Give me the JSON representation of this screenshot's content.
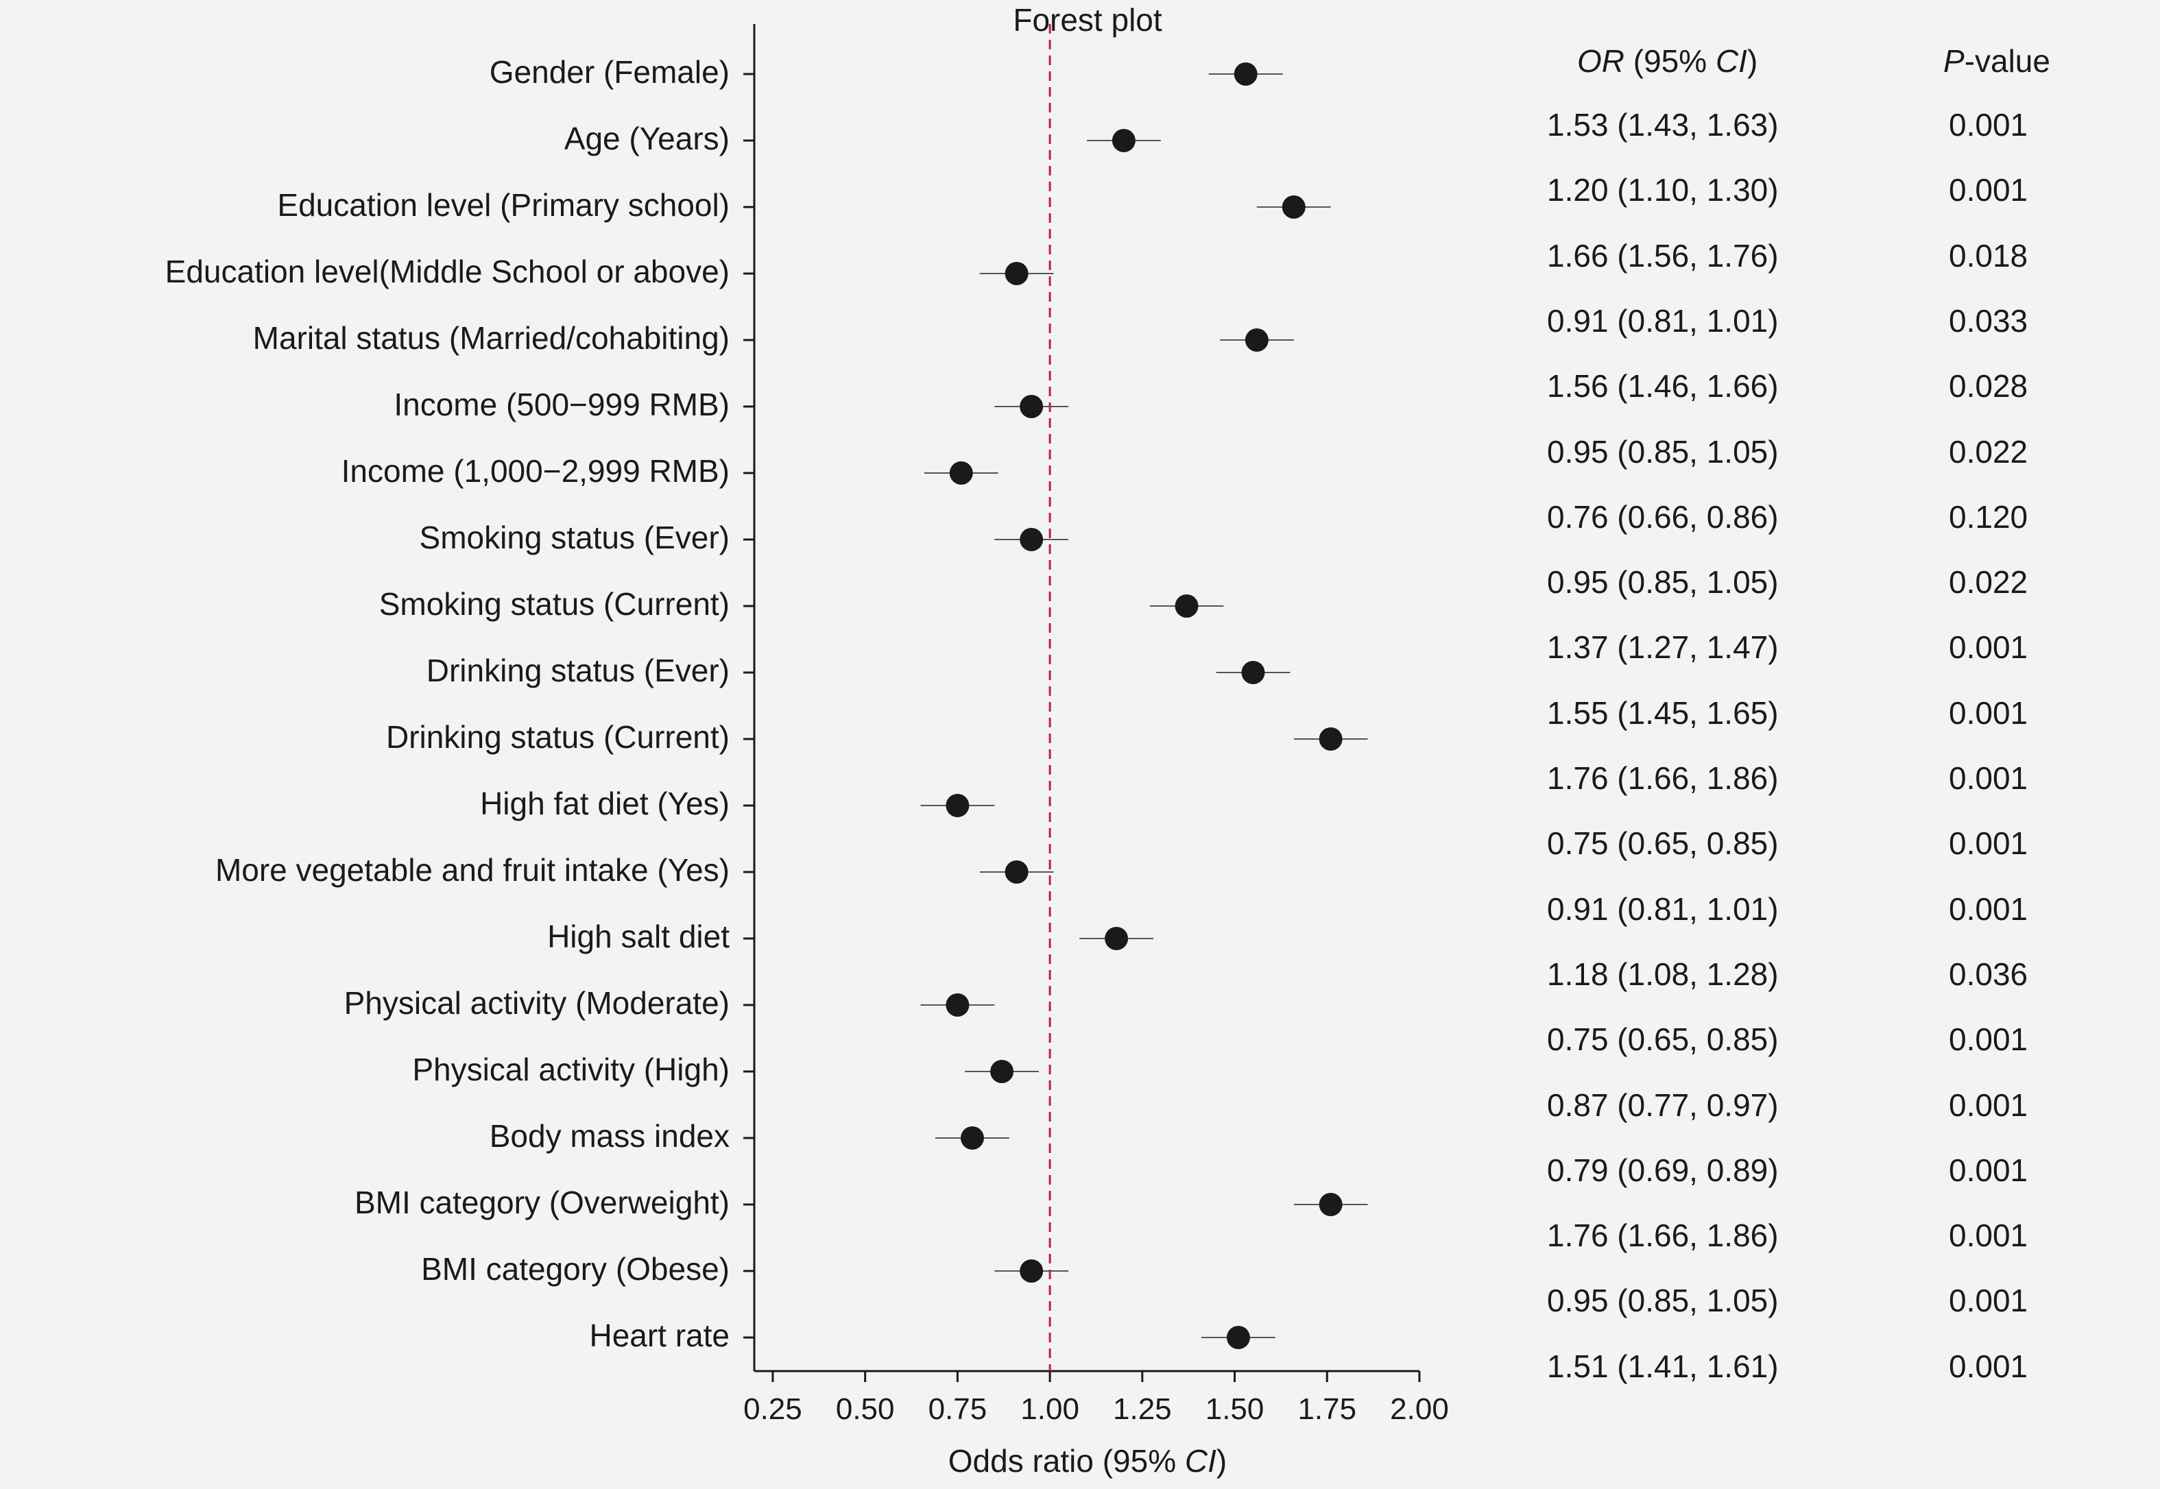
{
  "chart_data": {
    "type": "scatter",
    "title": "Forest plot",
    "xlabel_main": "Odds ratio (95% ",
    "xlabel_ci": "CI",
    "xlabel_end": ")",
    "xlim": [
      0.2,
      2.0
    ],
    "xticks": [
      "0.25",
      "0.50",
      "0.75",
      "1.00",
      "1.25",
      "1.50",
      "1.75",
      "2.00"
    ],
    "reference_line": 1.0,
    "reference_color": "#c2185b",
    "point_color": "#1a1a1a",
    "or_header_italic": "OR",
    "or_header_mid": " (95% ",
    "or_header_ci": "CI",
    "or_header_end": ")",
    "p_header_italic": "P",
    "p_header_rest": "-value",
    "categories": [
      "Gender (Female)",
      "Age (Years)",
      "Education level (Primary school)",
      "Education level(Middle School or above)",
      "Marital status (Married/cohabiting)",
      "Income (500−999 RMB)",
      "Income (1,000−2,999 RMB) ",
      "Smoking status (Ever)",
      "Smoking status (Current)",
      "Drinking status (Ever)",
      "Drinking status (Current)",
      "High fat diet (Yes)",
      "More vegetable and fruit intake (Yes)",
      "High salt diet",
      "Physical activity (Moderate)",
      "Physical activity (High)",
      "Body mass index",
      "BMI category (Overweight)",
      "BMI category (Obese)",
      "Heart rate"
    ],
    "or": [
      1.53,
      1.2,
      1.66,
      0.91,
      1.56,
      0.95,
      0.76,
      0.95,
      1.37,
      1.55,
      1.76,
      0.75,
      0.91,
      1.18,
      0.75,
      0.87,
      0.79,
      1.76,
      0.95,
      1.51
    ],
    "ci_low": [
      1.43,
      1.1,
      1.56,
      0.81,
      1.46,
      0.85,
      0.66,
      0.85,
      1.27,
      1.45,
      1.66,
      0.65,
      0.81,
      1.08,
      0.65,
      0.77,
      0.69,
      1.66,
      0.85,
      1.41
    ],
    "ci_high": [
      1.63,
      1.3,
      1.76,
      1.01,
      1.66,
      1.05,
      0.86,
      1.05,
      1.47,
      1.65,
      1.86,
      0.85,
      1.01,
      1.28,
      0.85,
      0.97,
      0.89,
      1.86,
      1.05,
      1.61
    ],
    "or_text": [
      "1.53 (1.43, 1.63)",
      "1.20 (1.10, 1.30)",
      "1.66 (1.56, 1.76)",
      "0.91 (0.81, 1.01)",
      "1.56 (1.46, 1.66)",
      "0.95 (0.85, 1.05)",
      "0.76 (0.66, 0.86)",
      "0.95 (0.85, 1.05)",
      "1.37 (1.27, 1.47)",
      "1.55 (1.45, 1.65)",
      "1.76 (1.66, 1.86)",
      "0.75 (0.65, 0.85)",
      "0.91 (0.81, 1.01)",
      "1.18 (1.08, 1.28)",
      "0.75 (0.65, 0.85)",
      "0.87 (0.77, 0.97)",
      "0.79 (0.69, 0.89)",
      "1.76 (1.66, 1.86)",
      "0.95 (0.85, 1.05)",
      "1.51 (1.41, 1.61)"
    ],
    "p_values": [
      "0.001",
      "0.001",
      "0.018",
      "0.033",
      "0.028",
      "0.022",
      "0.120",
      "0.022",
      "0.001",
      "0.001",
      "0.001",
      "0.001",
      "0.001",
      "0.036",
      "0.001",
      "0.001",
      "0.001",
      "0.001",
      "0.001",
      "0.001"
    ]
  }
}
